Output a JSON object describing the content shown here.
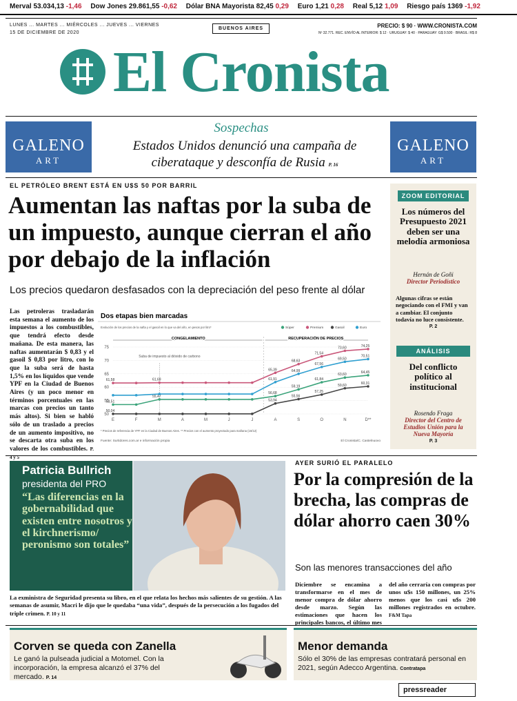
{
  "ticker": [
    {
      "name": "Merval",
      "value": "53.034,13",
      "change": "-1,46"
    },
    {
      "name": "Dow Jones",
      "value": "29.861,55",
      "change": "-0,62"
    },
    {
      "name": "Dólar BNA Mayorista",
      "value": "82,45",
      "change": "0,29"
    },
    {
      "name": "Euro",
      "value": "1,21",
      "change": "0,28"
    },
    {
      "name": "Real",
      "value": "5,12",
      "change": "1,09"
    },
    {
      "name": "Riesgo país",
      "value": "1369",
      "change": "-1,92"
    }
  ],
  "masthead": {
    "days": "LUNES ... MARTES ... MIÉRCOLES ... JUEVES ... VIERNES",
    "date": "15 DE DICIEMBRE DE 2020",
    "city": "BUENOS AIRES",
    "price": "PRECIO: $ 90 · WWW.CRONISTA.COM",
    "fineprint": "Nº 32.771. REC. ENVÍO AL INTERIOR: $ 12 · URUGUAY: $ 40 · PARAGUAY: G$ 9.500 · BRASIL: R$ 8",
    "logo": "El Cronista"
  },
  "ads": {
    "brand": "GALENO",
    "sub": "ART"
  },
  "top_story": {
    "kicker": "Sospechas",
    "headline": "Estados Unidos denunció una campaña de ciberataque y desconfía de Rusia",
    "page": "P. 16"
  },
  "main_story": {
    "kicker": "EL PETRÓLEO BRENT ESTÁ EN U$S 50 POR BARRIL",
    "headline": "Aumentan las naftas por la suba de un impuesto, aunque cierran el año por debajo de la inflación",
    "deck": "Los precios quedaron desfasados con la depreciación del peso frente al dólar",
    "body": "Las petroleras trasladarán esta semana el aumento de los impuestos a los combustibles, que tendrá efecto desde mañana. De esta manera, las naftas aumentarán $ 0,83 y el gasoil $ 0,83 por litro, con lo que la suba será de hasta 1,5% en los líquidos que vende YPF en la Ciudad de Buenos Aires (y un poco menor en términos porcentuales en las marcas con precios un tanto más altos). Si bien se habló sólo de un traslado a precios de un aumento impositivo, no se descarta otra suba en los valores de los combustibles.",
    "page": "P. 4 y 5"
  },
  "chart_data": {
    "type": "line",
    "title": "Dos etapas bien marcadas",
    "subtitle": "Evolución de los precios de la nafta y el gasoil en lo que va del año, en pesos por litro*",
    "categories": [
      "E",
      "F",
      "M",
      "A",
      "M",
      "J",
      "J",
      "A",
      "S",
      "O",
      "N",
      "D**"
    ],
    "series": [
      {
        "name": "Súper",
        "color": "#3aa37a",
        "values": [
          53.51,
          53.51,
          55.47,
          55.47,
          55.47,
          55.47,
          55.47,
          56.68,
          59.19,
          61.84,
          63.6,
          64.45
        ],
        "value_labels": [
          "53,51",
          null,
          "55,47",
          null,
          null,
          null,
          null,
          "56,68",
          "59,19",
          "61,84",
          "63,60",
          "64,45"
        ]
      },
      {
        "name": "Premium",
        "color": "#c9577a",
        "values": [
          61.58,
          61.58,
          61.69,
          61.69,
          61.69,
          61.69,
          61.69,
          65.39,
          68.63,
          71.54,
          73.6,
          74.25
        ],
        "value_labels": [
          "61,58",
          null,
          "61,69",
          null,
          null,
          null,
          null,
          "65,39",
          "68,63",
          "71,54",
          "73,60",
          "74,25"
        ]
      },
      {
        "name": "Gasoil",
        "color": "#444444",
        "values": [
          50.04,
          50.04,
          50.04,
          50.04,
          50.04,
          50.04,
          50.04,
          53.94,
          55.56,
          57.25,
          59.6,
          60.31
        ],
        "value_labels": [
          "50,04",
          null,
          null,
          null,
          null,
          null,
          null,
          "53,94",
          "55,56",
          "57,25",
          "59,60",
          "60,31"
        ]
      },
      {
        "name": "Euro",
        "color": "#2f9fd0",
        "values": [
          57.0,
          57.0,
          57.45,
          57.45,
          57.45,
          57.45,
          57.45,
          61.91,
          64.99,
          67.56,
          69.5,
          70.51
        ],
        "value_labels": [
          null,
          null,
          null,
          null,
          null,
          null,
          null,
          "61,91",
          "64,99",
          "67,56",
          "69,50",
          "70,51"
        ]
      }
    ],
    "ylim": [
      50,
      75
    ],
    "yticks": [
      50,
      55,
      60,
      65,
      70,
      75
    ],
    "grid": true,
    "phases": [
      "CONGELAMIENTO",
      "RECUPERACIÓN DE PRECIOS"
    ],
    "annotation": "Suba de impuesto al dióxido de carbono",
    "footnote": "* Precios de referencia de YPF en la Ciudad de Buenos Aires.   ** Precios con el aumento proyectado para mañana (16/12)",
    "source": "Fuente: Surtidores.com.ar e información propia",
    "credit": "El Cronista/C. Castelnuovo"
  },
  "sidebar": {
    "zoom": {
      "label": "ZOOM EDITORIAL",
      "headline": "Los números del Presupuesto 2021 deben ser una melodía armoniosa",
      "author": "Hernán de Goñi",
      "role": "Director Periodístico",
      "text": "Algunas cifras se están negociando con el FMI y van a cambiar. El conjunto todavía no luce consistente.",
      "page": "P. 2"
    },
    "analysis": {
      "label": "ANÁLISIS",
      "headline": "Del conflicto político al institucional",
      "author": "Rosendo Fraga",
      "role": "Director del Centro de Estudios Unión para la Nueva Mayoría",
      "page": "P. 3"
    }
  },
  "interview": {
    "name": "Patricia Bullrich",
    "role": "presidenta del PRO",
    "quote": "“Las diferencias en la gobernabilidad que existen entre nosotros y el kirchnerismo/ peronismo son totales”",
    "caption": "La exministra de Seguridad presenta su libro, en el que relata los hechos más salientes de su gestión. A las semanas de asumir, Macri le dijo que le quedaba “una vida”, después de la persecución a los fugados del triple crimen.",
    "page": "P. 10 y 11"
  },
  "dollar_story": {
    "kicker": "AYER SURIÓ EL PARALELO",
    "headline": "Por la compresión de la brecha, las compras de dólar ahorro caen 30%",
    "deck": "Son las menores transacciones del año",
    "body": "Diciembre se encamina a transformarse en el mes de menor compra de dólar ahorro desde marzo. Según las estimaciones que hacen los principales bancos, el último mes del año cerraría con compras por unos u$s 150 millones, un 25% menos que los casi u$s 200 millones registrados en octubre.",
    "page": "F&M Tapa"
  },
  "briefs": [
    {
      "headline": "Corven se queda con Zanella",
      "text": "Le ganó la pulseada judicial a Motomel. Con la incorporación, la empresa alcanzó el 37% del mercado.",
      "page": "P. 14"
    },
    {
      "headline": "Menor demanda",
      "text": "Sólo el 30% de las empresas contratará personal en 2021, según Adecco Argentina.",
      "page": "Contratapa"
    }
  ],
  "footer": {
    "brand": "pressreader"
  }
}
